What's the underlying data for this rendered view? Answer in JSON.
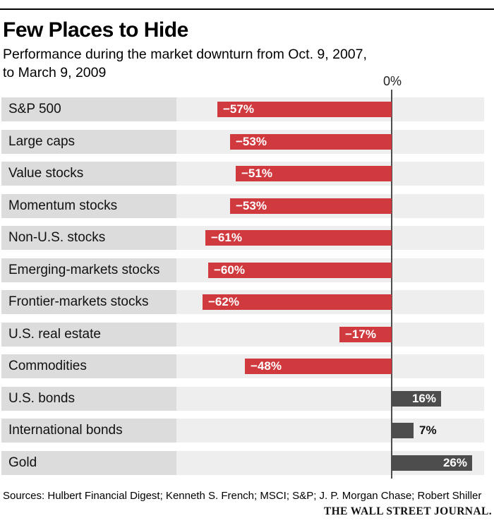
{
  "header": {
    "title": "Few Places to Hide",
    "subtitle_line1": "Performance during the market downturn from Oct. 9, 2007,",
    "subtitle_line2": "to March 9, 2009"
  },
  "axis": {
    "zero_label": "0%"
  },
  "chart_data": {
    "type": "bar",
    "orientation": "horizontal",
    "title": "Few Places to Hide",
    "subtitle": "Performance during the market downturn from Oct. 9, 2007, to March 9, 2009",
    "xlabel": "",
    "ylabel": "",
    "xlim": [
      -70,
      30
    ],
    "grid": false,
    "baseline_label": "0%",
    "categories": [
      "S&P 500",
      "Large caps",
      "Value stocks",
      "Momentum stocks",
      "Non-U.S. stocks",
      "Emerging-markets stocks",
      "Frontier-markets stocks",
      "U.S. real estate",
      "Commodities",
      "U.S. bonds",
      "International bonds",
      "Gold"
    ],
    "values": [
      -57,
      -53,
      -51,
      -53,
      -61,
      -60,
      -62,
      -17,
      -48,
      16,
      7,
      26
    ],
    "value_labels": [
      "−57%",
      "−53%",
      "−51%",
      "−53%",
      "−61%",
      "−60%",
      "−62%",
      "−17%",
      "−48%",
      "16%",
      "7%",
      "26%"
    ]
  },
  "colors": {
    "negative_bar": "#d0393e",
    "positive_bar": "#4d4d4d",
    "label_cell_bg": "#dcdcdc",
    "plot_cell_bg": "#eeeeee",
    "zero_line": "#4d4d4d"
  },
  "footer": {
    "sources": "Sources: Hulbert Financial Digest; Kenneth S. French; MSCI; S&P; J. P. Morgan Chase; Robert Shiller",
    "credit": "THE WALL STREET JOURNAL."
  }
}
